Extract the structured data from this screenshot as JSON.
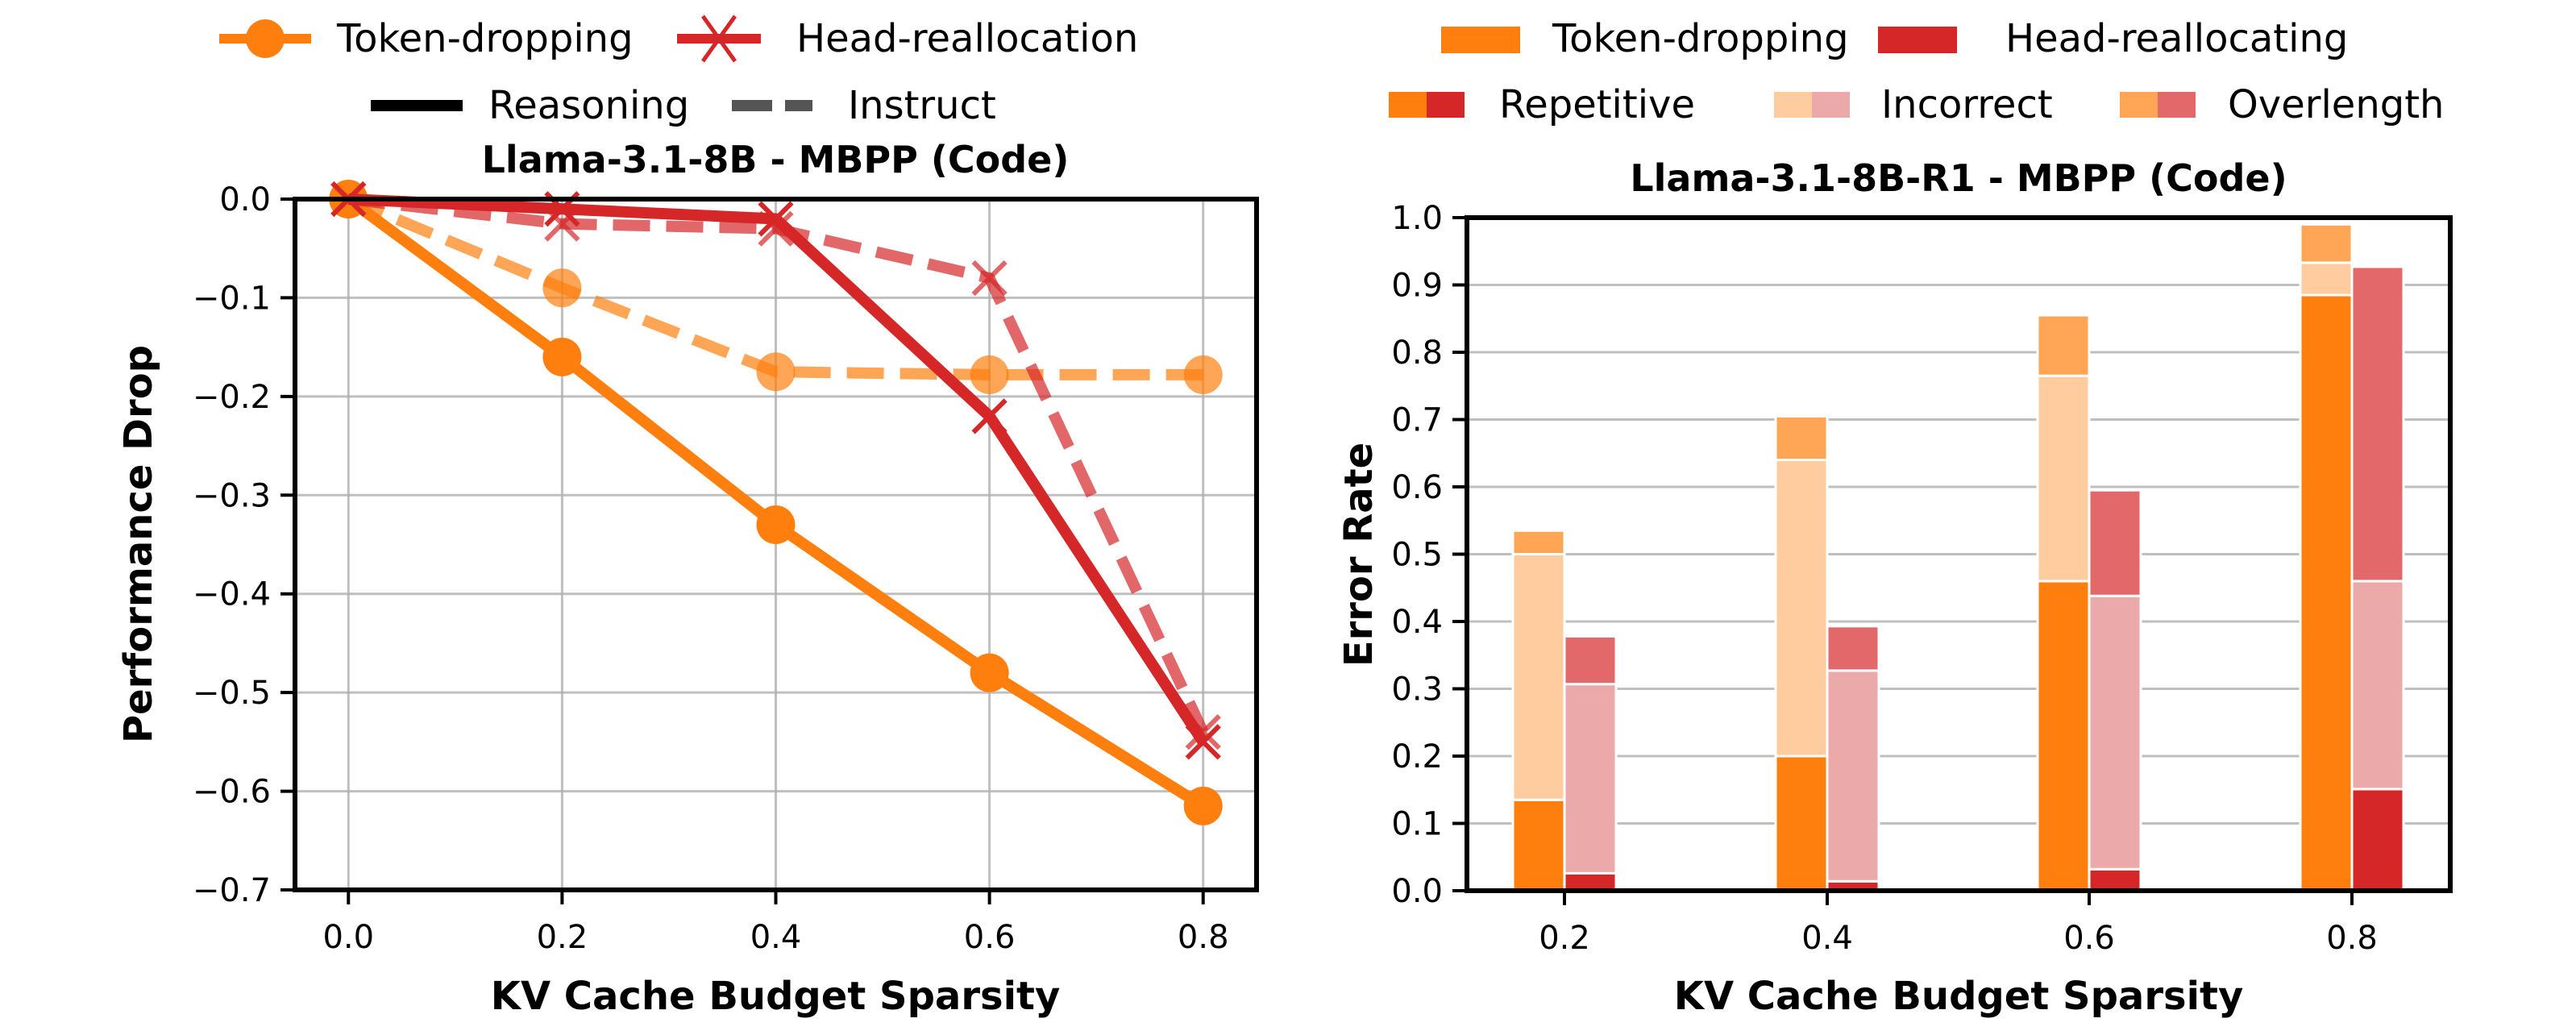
{
  "chart_data": [
    {
      "type": "line",
      "title": "Llama-3.1-8B - MBPP (Code)",
      "xlabel": "KV Cache Budget Sparsity",
      "ylabel": "Performance Drop",
      "xlim": [
        -0.05,
        0.85
      ],
      "ylim": [
        -0.7,
        0.0
      ],
      "grid": true,
      "x": [
        0.0,
        0.2,
        0.4,
        0.6,
        0.8
      ],
      "xticks": [
        "0.0",
        "0.2",
        "0.4",
        "0.6",
        "0.8"
      ],
      "yticks": [
        "0.0",
        "−0.1",
        "−0.2",
        "−0.3",
        "−0.4",
        "−0.5",
        "−0.6",
        "−0.7"
      ],
      "ytick_values": [
        0.0,
        -0.1,
        -0.2,
        -0.3,
        -0.4,
        -0.5,
        -0.6,
        -0.7
      ],
      "series": [
        {
          "name": "Token-dropping (Reasoning)",
          "method": "Token-dropping",
          "model": "Reasoning",
          "color": "#ff7f0e",
          "marker": "circle",
          "dashed": false,
          "values": [
            0.0,
            -0.16,
            -0.33,
            -0.48,
            -0.615
          ]
        },
        {
          "name": "Token-dropping (Instruct)",
          "method": "Token-dropping",
          "model": "Instruct",
          "color": "#ff7f0e",
          "marker": "circle",
          "dashed": true,
          "values": [
            0.0,
            -0.09,
            -0.175,
            -0.178,
            -0.178
          ]
        },
        {
          "name": "Head-reallocation (Reasoning)",
          "method": "Head-reallocation",
          "model": "Reasoning",
          "color": "#d62728",
          "marker": "x",
          "dashed": false,
          "values": [
            0.0,
            -0.01,
            -0.02,
            -0.22,
            -0.55
          ]
        },
        {
          "name": "Head-reallocation (Instruct)",
          "method": "Head-reallocation",
          "model": "Instruct",
          "color": "#d62728",
          "marker": "x",
          "dashed": true,
          "values": [
            0.0,
            -0.025,
            -0.03,
            -0.08,
            -0.54
          ]
        }
      ],
      "legend": {
        "placement": "top-center",
        "methods": [
          {
            "label": "Token-dropping",
            "color": "#ff7f0e",
            "marker": "circle"
          },
          {
            "label": "Head-reallocation",
            "color": "#d62728",
            "marker": "x"
          }
        ],
        "styles": [
          {
            "label": "Reasoning",
            "color": "#000000",
            "dashed": false
          },
          {
            "label": "Instruct",
            "color": "#555555",
            "dashed": true
          }
        ]
      }
    },
    {
      "type": "bar",
      "stacked": true,
      "title": "Llama-3.1-8B-R1 - MBPP (Code)",
      "xlabel": "KV Cache Budget Sparsity",
      "ylabel": "Error Rate",
      "ylim": [
        0.0,
        1.0
      ],
      "grid": true,
      "categories": [
        "0.2",
        "0.4",
        "0.6",
        "0.8"
      ],
      "yticks": [
        "0.0",
        "0.1",
        "0.2",
        "0.3",
        "0.4",
        "0.5",
        "0.6",
        "0.7",
        "0.8",
        "0.9",
        "1.0"
      ],
      "ytick_values": [
        0.0,
        0.1,
        0.2,
        0.3,
        0.4,
        0.5,
        0.6,
        0.7,
        0.8,
        0.9,
        1.0
      ],
      "segments": [
        "Repetitive",
        "Incorrect",
        "Overlength"
      ],
      "series": [
        {
          "name": "Token-dropping",
          "colors": {
            "Repetitive": "#ff7f0e",
            "Incorrect": "#ffcc9f",
            "Overlength": "#ffa556"
          },
          "Repetitive": [
            0.135,
            0.2,
            0.46,
            0.885
          ],
          "Incorrect": [
            0.365,
            0.44,
            0.305,
            0.048
          ],
          "Overlength": [
            0.035,
            0.065,
            0.09,
            0.057
          ]
        },
        {
          "name": "Head-reallocating",
          "colors": {
            "Repetitive": "#d62728",
            "Incorrect": "#eca9aa",
            "Overlength": "#e2686a"
          },
          "Repetitive": [
            0.026,
            0.014,
            0.032,
            0.151
          ],
          "Incorrect": [
            0.281,
            0.313,
            0.406,
            0.309
          ],
          "Overlength": [
            0.071,
            0.066,
            0.157,
            0.467
          ]
        }
      ],
      "legend": {
        "placement": "top-center",
        "methods": [
          {
            "label": "Token-dropping",
            "color": "#ff7f0e"
          },
          {
            "label": "Head-reallocating",
            "color": "#d62728"
          }
        ],
        "segments": [
          {
            "label": "Repetitive",
            "colors": [
              "#ff7f0e",
              "#d62728"
            ]
          },
          {
            "label": "Incorrect",
            "colors": [
              "#ffcc9f",
              "#eca9aa"
            ]
          },
          {
            "label": "Overlength",
            "colors": [
              "#ffa556",
              "#e2686a"
            ]
          }
        ]
      }
    }
  ]
}
